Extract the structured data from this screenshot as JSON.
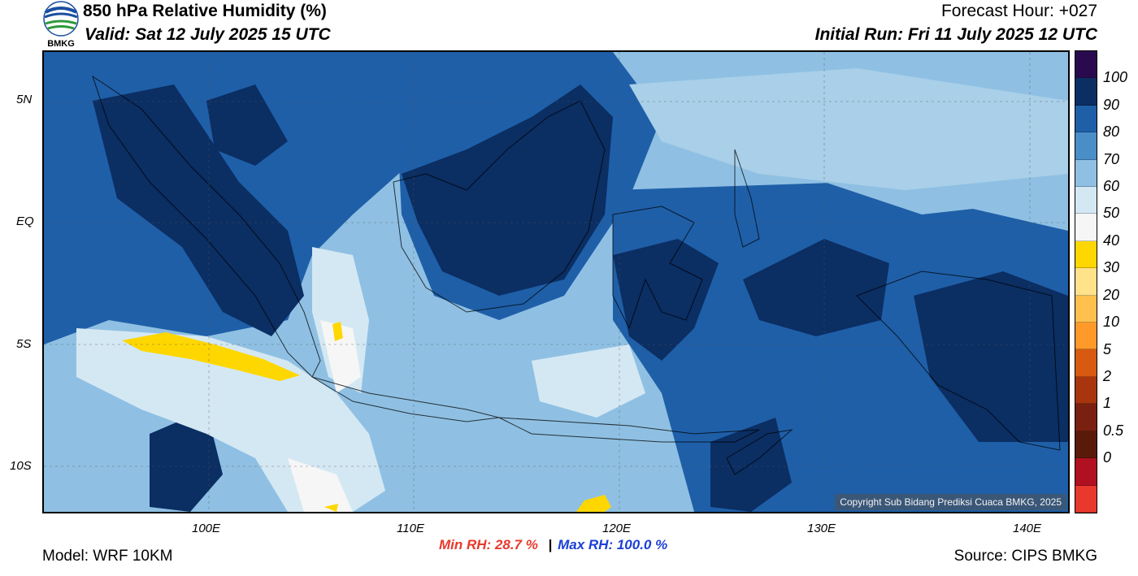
{
  "header": {
    "logo_text": "BMKG",
    "title": "850 hPa Relative Humidity (%)",
    "valid": "Valid: Sat 12 July 2025 15 UTC",
    "forecast_hour": "Forecast Hour: +027",
    "initial_run": "Initial Run: Fri 11 July 2025 12 UTC"
  },
  "map": {
    "lat_ticks": [
      "5N",
      "EQ",
      "5S",
      "10S"
    ],
    "lon_ticks": [
      "100E",
      "110E",
      "120E",
      "130E",
      "140E"
    ],
    "copyright": "Copyright Sub Bidang Prediksi Cuaca BMKG, 2025"
  },
  "colorbar": {
    "levels": [
      "100",
      "90",
      "80",
      "70",
      "60",
      "50",
      "40",
      "30",
      "20",
      "10",
      "5",
      "2",
      "1",
      "0.5",
      "0"
    ],
    "colors": [
      "#2a0a4e",
      "#0b2e63",
      "#1f5fa8",
      "#4a8ec8",
      "#8fc0e3",
      "#d4e8f3",
      "#f6f6f6",
      "#ffd700",
      "#ffe28a",
      "#ffc04d",
      "#ff9a2a",
      "#d85a10",
      "#a8350e",
      "#7a2010",
      "#5a1a0a",
      "#b01020",
      "#e8392c"
    ]
  },
  "footer": {
    "model": "Model: WRF 10KM",
    "min_rh": "Min RH:  28.7 %",
    "separator": "|",
    "max_rh": "Max RH: 100.0 %",
    "source": "Source: CIPS BMKG"
  },
  "style_colors": {
    "min_color": "#e8392c",
    "max_color": "#1b3fd8"
  }
}
